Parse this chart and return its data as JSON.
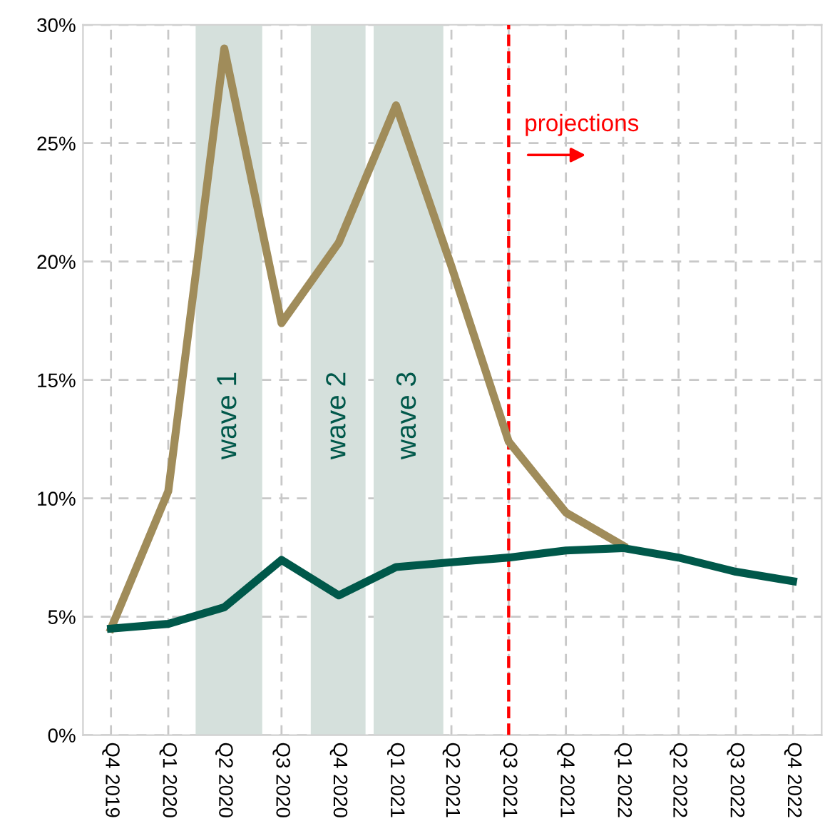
{
  "chart_data": {
    "type": "line",
    "x": [
      "2019-11-15",
      "2020-02-15",
      "2020-05-15",
      "2020-08-15",
      "2020-11-15",
      "2021-02-15",
      "2021-05-15",
      "2021-08-15",
      "2021-11-15",
      "2022-02-15",
      "2022-05-15",
      "2022-08-15",
      "2022-11-15"
    ],
    "series": [
      {
        "color": "#a08c5a",
        "values": [
          4.5,
          10.3,
          29.0,
          17.4,
          20.8,
          26.6,
          19.8,
          12.4,
          9.4,
          8.0,
          null,
          null,
          null
        ]
      },
      {
        "color": "#00584a",
        "values": [
          4.5,
          4.7,
          5.4,
          7.4,
          5.9,
          7.1,
          7.3,
          7.5,
          7.8,
          7.9,
          7.5,
          6.9,
          6.5
        ]
      }
    ],
    "xlim": [
      "2019-10-01",
      "2022-12-31"
    ],
    "xticks": [
      {
        "value": "2019-11-15",
        "label": "Q4 2019"
      },
      {
        "value": "2020-02-15",
        "label": "Q1 2020"
      },
      {
        "value": "2020-05-15",
        "label": "Q2 2020"
      },
      {
        "value": "2020-08-15",
        "label": "Q3 2020"
      },
      {
        "value": "2020-11-15",
        "label": "Q4 2020"
      },
      {
        "value": "2021-02-15",
        "label": "Q1 2021"
      },
      {
        "value": "2021-05-15",
        "label": "Q2 2021"
      },
      {
        "value": "2021-08-15",
        "label": "Q3 2021"
      },
      {
        "value": "2021-11-15",
        "label": "Q4 2021"
      },
      {
        "value": "2022-02-15",
        "label": "Q1 2022"
      },
      {
        "value": "2022-05-15",
        "label": "Q2 2022"
      },
      {
        "value": "2022-08-15",
        "label": "Q3 2022"
      },
      {
        "value": "2022-11-15",
        "label": "Q4 2022"
      }
    ],
    "ylim": [
      0,
      30
    ],
    "yticks": [
      {
        "value": 0,
        "label": "0%"
      },
      {
        "value": 5,
        "label": "5%"
      },
      {
        "value": 10,
        "label": "10%"
      },
      {
        "value": 15,
        "label": "15%"
      },
      {
        "value": 20,
        "label": "20%"
      },
      {
        "value": 25,
        "label": "25%"
      },
      {
        "value": 30,
        "label": "30%"
      }
    ],
    "bands": [
      {
        "axis": "x",
        "from": "2020-03-30",
        "to": "2020-07-15",
        "label": "wave 1",
        "color": "#d5e0dc"
      },
      {
        "axis": "x",
        "from": "2020-10-01",
        "to": "2020-12-28",
        "label": "wave 2",
        "color": "#d5e0dc"
      },
      {
        "axis": "x",
        "from": "2021-01-10",
        "to": "2021-05-02",
        "label": "wave 3",
        "color": "#d5e0dc"
      }
    ],
    "ref_lines": [
      {
        "axis": "x",
        "value": "2021-08-15",
        "label": "projections",
        "color": "#ff0000",
        "line_style": "dashed"
      }
    ],
    "grid": true,
    "line_style": "solid",
    "marker": "none"
  }
}
